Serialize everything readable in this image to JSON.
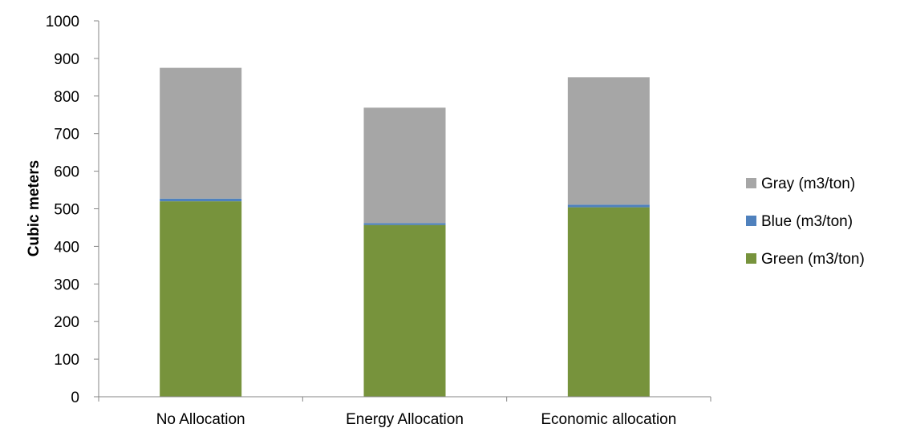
{
  "chart_data": {
    "type": "bar",
    "stacked": true,
    "categories": [
      "No Allocation",
      "Energy Allocation",
      "Economic allocation"
    ],
    "series": [
      {
        "name": "Green (m3/ton)",
        "values": [
          520,
          457,
          504
        ],
        "color": "#77933c"
      },
      {
        "name": "Blue (m3/ton)",
        "values": [
          7,
          5,
          7
        ],
        "color": "#4f81bd"
      },
      {
        "name": "Gray (m3/ton)",
        "values": [
          348,
          307,
          339
        ],
        "color": "#a6a6a6"
      }
    ],
    "ylabel": "Cubic meters",
    "ylim": [
      0,
      1000
    ],
    "yticks": [
      0,
      100,
      200,
      300,
      400,
      500,
      600,
      700,
      800,
      900,
      1000
    ],
    "legend_order": [
      "Gray (m3/ton)",
      "Blue (m3/ton)",
      "Green (m3/ton)"
    ],
    "legend_position": "right",
    "grid": false
  }
}
